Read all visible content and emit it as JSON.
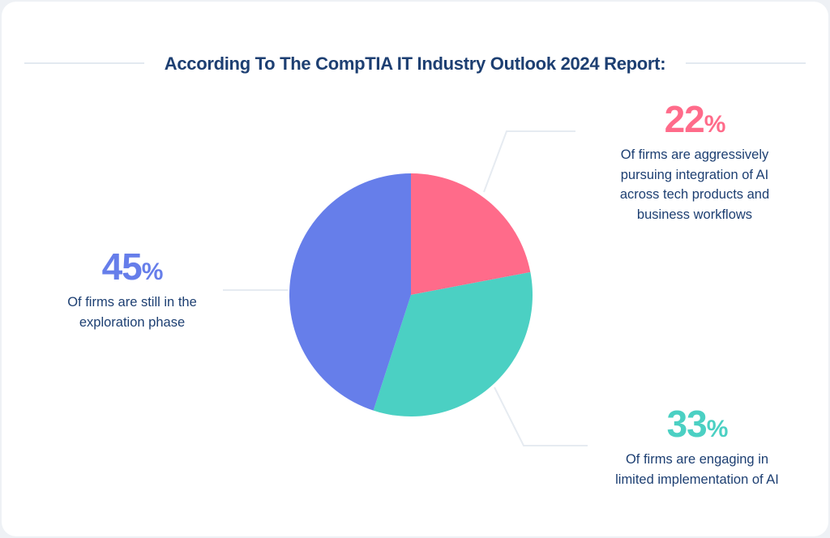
{
  "title": "According To The CompTIA IT Industry Outlook 2024 Report:",
  "chart_data": {
    "type": "pie",
    "title": "According To The CompTIA IT Industry Outlook 2024 Report:",
    "slices": [
      {
        "value": 22,
        "label": "22",
        "unit": "%",
        "description": "Of firms are aggressively\npursuing integration of AI\nacross tech products and\nbusiness workflows",
        "color": "#ff6b8a"
      },
      {
        "value": 33,
        "label": "33",
        "unit": "%",
        "description": "Of firms are engaging in\nlimited implementation of AI",
        "color": "#4bd0c3"
      },
      {
        "value": 45,
        "label": "45",
        "unit": "%",
        "description": "Of firms are still in the\nexploration phase",
        "color": "#667eea"
      }
    ]
  },
  "colors": {
    "title": "#1d3f72",
    "leader_line": "#e6ebf1"
  }
}
